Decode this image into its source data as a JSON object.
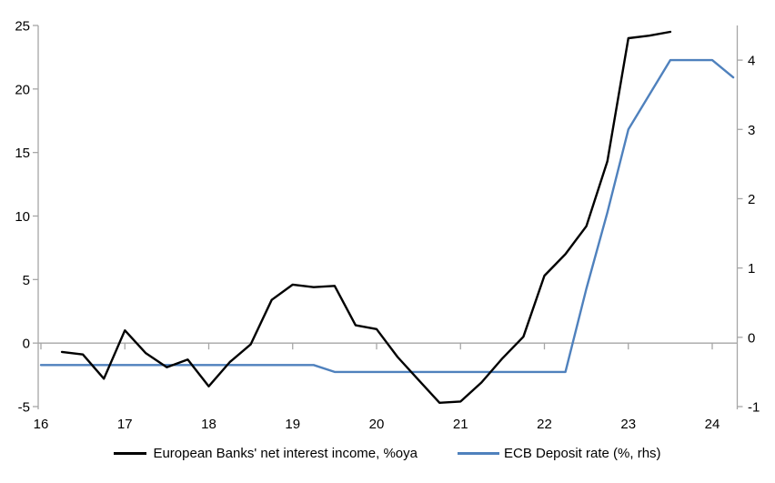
{
  "chart_data": {
    "type": "line",
    "grid": false,
    "zero_line": true,
    "legend_position": "bottom",
    "x_axis": {
      "min": 16,
      "max": 24.29,
      "ticks": [
        16,
        17,
        18,
        19,
        20,
        21,
        22,
        23,
        24
      ],
      "tick_labels": [
        "16",
        "17",
        "18",
        "19",
        "20",
        "21",
        "22",
        "23",
        "24"
      ]
    },
    "left_axis": {
      "min": -5,
      "max": 25,
      "ticks": [
        -5,
        0,
        5,
        10,
        15,
        20,
        25
      ],
      "tick_labels": [
        "-5",
        "0",
        "5",
        "10",
        "15",
        "20",
        "25"
      ]
    },
    "right_axis": {
      "min": -1,
      "max": 4.5,
      "ticks": [
        -1,
        0,
        1,
        2,
        3,
        4
      ],
      "tick_labels": [
        "-1",
        "0",
        "1",
        "2",
        "3",
        "4"
      ]
    },
    "series": [
      {
        "name": "ECB Deposit rate (%, rhs)",
        "axis": "right",
        "color": "#4f81bd",
        "x": [
          16.0,
          16.25,
          16.5,
          16.75,
          17.0,
          17.25,
          17.5,
          17.75,
          18.0,
          18.25,
          18.5,
          18.75,
          19.0,
          19.25,
          19.5,
          19.75,
          20.0,
          20.25,
          20.5,
          20.75,
          21.0,
          21.25,
          21.5,
          21.75,
          22.0,
          22.25,
          22.5,
          22.75,
          23.0,
          23.25,
          23.5,
          23.75,
          24.0,
          24.25
        ],
        "values": [
          -0.4,
          -0.4,
          -0.4,
          -0.4,
          -0.4,
          -0.4,
          -0.4,
          -0.4,
          -0.4,
          -0.4,
          -0.4,
          -0.4,
          -0.4,
          -0.4,
          -0.5,
          -0.5,
          -0.5,
          -0.5,
          -0.5,
          -0.5,
          -0.5,
          -0.5,
          -0.5,
          -0.5,
          -0.5,
          -0.5,
          0.7,
          1.8,
          3.0,
          3.5,
          4.0,
          4.0,
          4.0,
          3.75
        ]
      },
      {
        "name": "European Banks' net interest income, %oya",
        "axis": "left",
        "color": "#000000",
        "x": [
          16.25,
          16.5,
          16.75,
          17.0,
          17.25,
          17.5,
          17.75,
          18.0,
          18.25,
          18.5,
          18.75,
          19.0,
          19.25,
          19.5,
          19.75,
          20.0,
          20.25,
          20.5,
          20.75,
          21.0,
          21.25,
          21.5,
          21.75,
          22.0,
          22.25,
          22.5,
          22.75,
          23.0,
          23.25,
          23.5
        ],
        "values": [
          -0.7,
          -0.9,
          -2.8,
          1.0,
          -0.8,
          -1.9,
          -1.3,
          -3.4,
          -1.5,
          -0.1,
          3.4,
          4.6,
          4.4,
          4.5,
          1.4,
          1.1,
          -1.1,
          -2.9,
          -4.7,
          -4.6,
          -3.1,
          -1.2,
          0.5,
          5.3,
          7.0,
          9.2,
          14.3,
          24.0,
          24.2,
          24.5
        ]
      }
    ]
  },
  "legend": {
    "items": [
      {
        "label": "European Banks' net interest income, %oya",
        "color": "#000000"
      },
      {
        "label": "ECB Deposit rate (%, rhs)",
        "color": "#4f81bd"
      }
    ]
  },
  "colors": {
    "axis": "#a6a6a6",
    "text": "#000000",
    "background": "#ffffff",
    "series_black": "#000000",
    "series_blue": "#4f81bd"
  }
}
